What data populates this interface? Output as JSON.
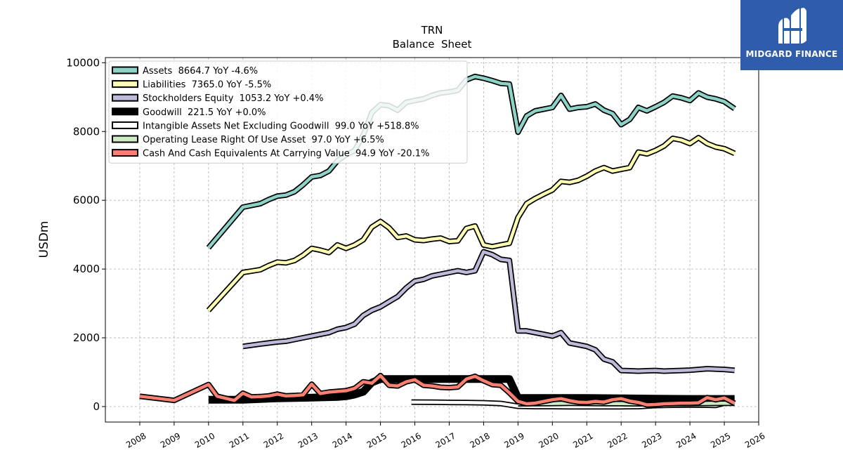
{
  "brand": {
    "logo_text": "MIDGARD FINANCE",
    "logo_bg": "#2f5dab"
  },
  "chart_data": {
    "type": "line",
    "title": "TRN",
    "subtitle": "Balance  Sheet",
    "ylabel": "USDm",
    "xlabel": "",
    "xlim": [
      2007.0,
      2026.0
    ],
    "ylim": [
      -450,
      10150
    ],
    "x_ticks": [
      "2008",
      "2009",
      "2010",
      "2011",
      "2012",
      "2013",
      "2014",
      "2015",
      "2016",
      "2017",
      "2018",
      "2019",
      "2020",
      "2021",
      "2022",
      "2023",
      "2024",
      "2025",
      "2026"
    ],
    "y_ticks": [
      "0",
      "2000",
      "4000",
      "6000",
      "8000",
      "10000"
    ],
    "grid": true,
    "legend_position": "top-left",
    "series": [
      {
        "name": "Assets  8664.7 YoY -4.6%",
        "color": "#8dd3c7",
        "x": [
          2010.0,
          2011.0,
          2011.5,
          2011.75,
          2012.0,
          2012.25,
          2012.5,
          2012.75,
          2013.0,
          2013.25,
          2013.5,
          2013.75,
          2014.0,
          2014.25,
          2014.5,
          2014.75,
          2015.0,
          2015.25,
          2015.5,
          2015.75,
          2016.0,
          2016.25,
          2016.5,
          2016.75,
          2017.0,
          2017.25,
          2017.5,
          2017.75,
          2018.0,
          2018.25,
          2018.5,
          2018.75,
          2019.0,
          2019.25,
          2019.5,
          2019.75,
          2020.0,
          2020.25,
          2020.5,
          2020.75,
          2021.0,
          2021.25,
          2021.5,
          2021.75,
          2022.0,
          2022.25,
          2022.5,
          2022.75,
          2023.0,
          2023.25,
          2023.5,
          2023.75,
          2024.0,
          2024.25,
          2024.5,
          2024.75,
          2025.0,
          2025.3
        ],
        "values": [
          4620,
          5800,
          5900,
          6020,
          6120,
          6150,
          6250,
          6450,
          6680,
          6720,
          6850,
          7150,
          7320,
          7450,
          7900,
          8550,
          8780,
          8750,
          8620,
          8850,
          8900,
          8950,
          9050,
          9120,
          9150,
          9200,
          9500,
          9600,
          9550,
          9480,
          9400,
          9380,
          7980,
          8450,
          8600,
          8650,
          8700,
          9050,
          8650,
          8700,
          8720,
          8800,
          8620,
          8520,
          8200,
          8350,
          8700,
          8600,
          8720,
          8850,
          9030,
          8980,
          8900,
          9120,
          9000,
          8950,
          8870,
          8664.7
        ]
      },
      {
        "name": "Liabilities  7365.0 YoY -5.5%",
        "color": "#ffffb3",
        "x": [
          2010.0,
          2011.0,
          2011.5,
          2011.75,
          2012.0,
          2012.25,
          2012.5,
          2012.75,
          2013.0,
          2013.25,
          2013.5,
          2013.75,
          2014.0,
          2014.25,
          2014.5,
          2014.75,
          2015.0,
          2015.25,
          2015.5,
          2015.75,
          2016.0,
          2016.25,
          2016.5,
          2016.75,
          2017.0,
          2017.25,
          2017.5,
          2017.75,
          2018.0,
          2018.25,
          2018.5,
          2018.75,
          2019.0,
          2019.25,
          2019.5,
          2019.75,
          2020.0,
          2020.25,
          2020.5,
          2020.75,
          2021.0,
          2021.25,
          2021.5,
          2021.75,
          2022.0,
          2022.25,
          2022.5,
          2022.75,
          2023.0,
          2023.25,
          2023.5,
          2023.75,
          2024.0,
          2024.25,
          2024.5,
          2024.75,
          2025.0,
          2025.3
        ],
        "values": [
          2800,
          3900,
          3980,
          4100,
          4200,
          4180,
          4250,
          4400,
          4600,
          4550,
          4480,
          4700,
          4600,
          4700,
          4850,
          5220,
          5380,
          5200,
          4920,
          4960,
          4850,
          4830,
          4870,
          4900,
          4800,
          4820,
          5180,
          5250,
          4700,
          4650,
          4700,
          4750,
          5500,
          5900,
          6050,
          6180,
          6300,
          6550,
          6520,
          6580,
          6700,
          6850,
          6950,
          6850,
          6900,
          6950,
          7400,
          7350,
          7450,
          7580,
          7800,
          7750,
          7650,
          7820,
          7650,
          7550,
          7500,
          7365.0
        ]
      },
      {
        "name": "Stockholders Equity  1053.2 YoY +0.4%",
        "color": "#bebada",
        "x": [
          2011.0,
          2011.5,
          2011.75,
          2012.0,
          2012.25,
          2012.5,
          2012.75,
          2013.0,
          2013.25,
          2013.5,
          2013.75,
          2014.0,
          2014.25,
          2014.5,
          2014.75,
          2015.0,
          2015.25,
          2015.5,
          2015.75,
          2016.0,
          2016.25,
          2016.5,
          2016.75,
          2017.0,
          2017.25,
          2017.5,
          2017.75,
          2018.0,
          2018.25,
          2018.5,
          2018.75,
          2019.0,
          2019.25,
          2019.5,
          2019.75,
          2020.0,
          2020.25,
          2020.5,
          2020.75,
          2021.0,
          2021.25,
          2021.5,
          2021.75,
          2022.0,
          2022.25,
          2022.5,
          2022.75,
          2023.0,
          2023.25,
          2023.5,
          2023.75,
          2024.0,
          2024.25,
          2024.5,
          2024.75,
          2025.0,
          2025.3
        ],
        "values": [
          1750,
          1820,
          1850,
          1880,
          1900,
          1950,
          2000,
          2050,
          2100,
          2150,
          2250,
          2300,
          2400,
          2650,
          2800,
          2900,
          3050,
          3200,
          3450,
          3650,
          3700,
          3800,
          3850,
          3900,
          3950,
          3900,
          3950,
          4500,
          4420,
          4280,
          4250,
          2200,
          2200,
          2150,
          2100,
          2050,
          2150,
          1850,
          1800,
          1750,
          1650,
          1380,
          1300,
          1050,
          1040,
          1030,
          1040,
          1050,
          1030,
          1040,
          1050,
          1060,
          1080,
          1100,
          1090,
          1080,
          1053.2
        ]
      },
      {
        "name": "Goodwill  221.5 YoY +0.0%",
        "color": "#000000",
        "x": [
          2010.0,
          2011.0,
          2012.0,
          2013.0,
          2013.75,
          2014.0,
          2014.25,
          2014.5,
          2014.75,
          2015.0,
          2016.0,
          2017.0,
          2017.75,
          2018.0,
          2018.75,
          2019.0,
          2020.0,
          2021.0,
          2022.0,
          2023.0,
          2024.0,
          2025.0,
          2025.3
        ],
        "values": [
          200,
          200,
          240,
          260,
          280,
          300,
          350,
          430,
          700,
          800,
          800,
          800,
          800,
          800,
          800,
          250,
          250,
          250,
          240,
          230,
          221.5,
          221.5,
          221.5
        ]
      },
      {
        "name": "Intangible Assets Net Excluding Goodwill  99.0 YoY +518.8%",
        "color": "#ffffff",
        "x": [
          2015.9,
          2016.5,
          2017.0,
          2017.5,
          2018.0,
          2018.5,
          2019.0,
          2019.5,
          2020.0,
          2020.5,
          2021.0,
          2021.5,
          2022.0,
          2022.5,
          2023.0,
          2023.5,
          2024.0,
          2024.5,
          2024.75,
          2025.0
        ],
        "values": [
          130,
          125,
          120,
          115,
          110,
          90,
          10,
          0,
          0,
          -5,
          -5,
          -5,
          -5,
          0,
          30,
          40,
          45,
          40,
          35,
          99.0
        ]
      },
      {
        "name": "Operating Lease Right Of Use Asset  97.0 YoY +6.5%",
        "color": "#ccebc5",
        "x": [
          2019.0,
          2019.5,
          2020.0,
          2020.5,
          2021.0,
          2021.5,
          2022.0,
          2022.5,
          2023.0,
          2023.5,
          2024.0,
          2024.5,
          2025.0,
          2025.3
        ],
        "values": [
          80,
          85,
          90,
          95,
          92,
          88,
          85,
          82,
          80,
          85,
          88,
          91,
          95,
          97.0
        ]
      },
      {
        "name": "Cash And Cash Equivalents At Carrying Value  94.9 YoY -20.1%",
        "color": "#fb8072",
        "x": [
          2008.0,
          2009.0,
          2010.0,
          2010.25,
          2010.75,
          2011.0,
          2011.25,
          2011.5,
          2011.75,
          2012.0,
          2012.25,
          2012.5,
          2012.75,
          2013.0,
          2013.25,
          2013.5,
          2013.75,
          2014.0,
          2014.25,
          2014.5,
          2014.75,
          2015.0,
          2015.25,
          2015.5,
          2015.75,
          2016.0,
          2016.25,
          2016.5,
          2016.75,
          2017.0,
          2017.25,
          2017.5,
          2017.75,
          2018.0,
          2018.25,
          2018.5,
          2018.75,
          2019.0,
          2019.25,
          2019.5,
          2019.75,
          2020.0,
          2020.25,
          2020.5,
          2020.75,
          2021.0,
          2021.25,
          2021.5,
          2021.75,
          2022.0,
          2022.25,
          2022.5,
          2022.75,
          2023.0,
          2023.25,
          2023.5,
          2023.75,
          2024.0,
          2024.25,
          2024.5,
          2024.75,
          2025.0,
          2025.3
        ],
        "values": [
          300,
          180,
          640,
          300,
          180,
          390,
          280,
          290,
          310,
          360,
          310,
          320,
          340,
          650,
          380,
          420,
          440,
          460,
          530,
          720,
          680,
          900,
          620,
          600,
          720,
          780,
          620,
          600,
          560,
          550,
          570,
          800,
          880,
          750,
          640,
          620,
          400,
          150,
          80,
          100,
          150,
          200,
          230,
          170,
          130,
          120,
          150,
          130,
          200,
          230,
          160,
          120,
          50,
          60,
          80,
          90,
          100,
          100,
          110,
          260,
          200,
          250,
          94.9
        ]
      }
    ]
  }
}
